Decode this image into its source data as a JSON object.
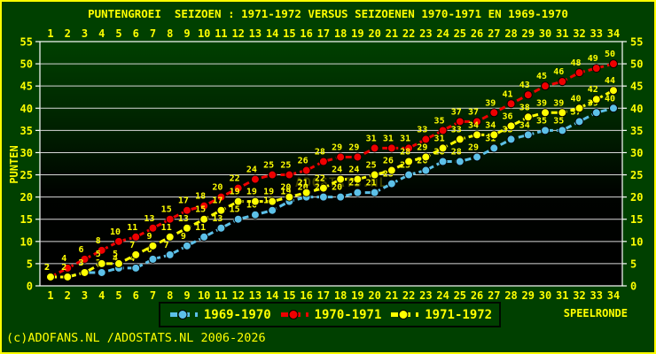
{
  "footer": "(c)ADOFANS.NL /ADOSTATS.NL 2006-2026",
  "watermark": "ADOSTATS.NL",
  "colors": {
    "background": "#004000",
    "frame_border": "#ffff00",
    "text": "#ffff00",
    "grid": "#d8d8d8",
    "plot_border": "#ffffff",
    "plot_gradient_top": "#004000",
    "plot_gradient_bottom": "#000000",
    "watermark_color": "#4b4b00",
    "series_1969_1970": "#5cc0e8",
    "series_1970_1971": "#ee0000",
    "series_1971_1972": "#ffff00"
  },
  "chart_data": {
    "type": "line",
    "title": "PUNTENGROEI  SEIZOEN : 1971-1972 VERSUS SEIZOENEN 1970-1971 EN 1969-1970",
    "xlabel": "SPEELRONDE",
    "ylabel": "PUNTEN",
    "x": [
      1,
      2,
      3,
      4,
      5,
      6,
      7,
      8,
      9,
      10,
      11,
      12,
      13,
      14,
      15,
      16,
      17,
      18,
      19,
      20,
      21,
      22,
      23,
      24,
      25,
      26,
      27,
      28,
      29,
      30,
      31,
      32,
      33,
      34
    ],
    "ylim": [
      0,
      55
    ],
    "y_ticks": [
      0,
      5,
      10,
      15,
      20,
      25,
      30,
      35,
      40,
      45,
      50,
      55
    ],
    "x_tick_labels_position": "top_and_bottom",
    "y_tick_labels_position": "left_and_right",
    "grid": true,
    "point_labels": true,
    "line_style": "dashed",
    "legend_position": "bottom",
    "series": [
      {
        "name": "1969-1970",
        "color": "#5cc0e8",
        "values": [
          2,
          2,
          3,
          3,
          4,
          4,
          6,
          7,
          9,
          11,
          13,
          15,
          16,
          17,
          19,
          20,
          20,
          20,
          21,
          21,
          23,
          25,
          26,
          28,
          28,
          29,
          31,
          33,
          34,
          35,
          35,
          37,
          39,
          40
        ]
      },
      {
        "name": "1970-1971",
        "color": "#ee0000",
        "values": [
          2,
          4,
          6,
          8,
          10,
          11,
          13,
          15,
          17,
          18,
          20,
          22,
          24,
          25,
          25,
          26,
          28,
          29,
          29,
          31,
          31,
          31,
          33,
          35,
          37,
          37,
          39,
          41,
          43,
          45,
          46,
          48,
          49,
          50
        ]
      },
      {
        "name": "1971-1972",
        "color": "#ffff00",
        "values": [
          2,
          2,
          3,
          5,
          5,
          7,
          9,
          11,
          13,
          15,
          17,
          19,
          19,
          19,
          20,
          21,
          22,
          24,
          24,
          25,
          26,
          28,
          29,
          31,
          33,
          34,
          34,
          36,
          38,
          39,
          39,
          40,
          42,
          44
        ]
      }
    ]
  }
}
